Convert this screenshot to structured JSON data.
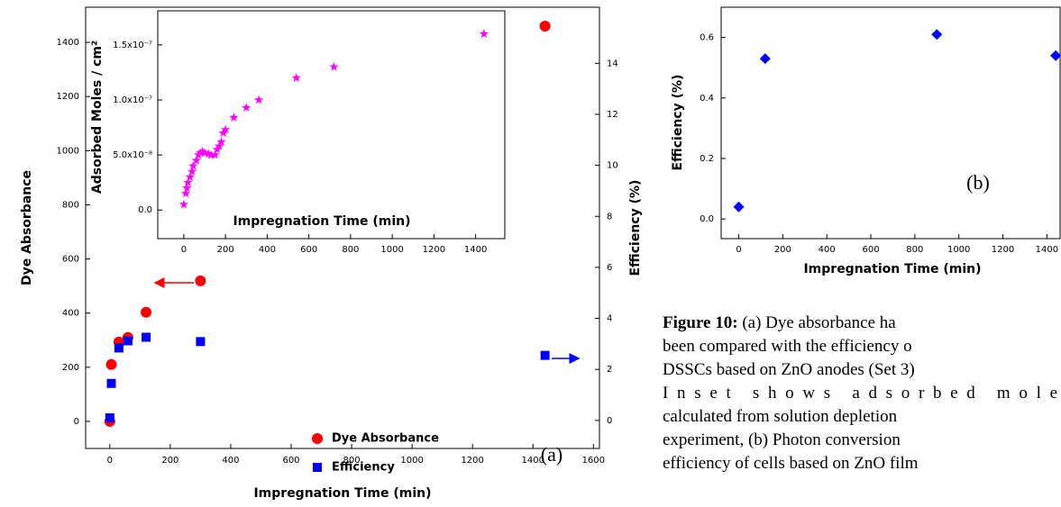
{
  "chart_data": [
    {
      "type": "scatter",
      "xlabel": "Impregnation Time (min)",
      "ylabel": "Dye Absorbance",
      "y2label": "Efficiency (%)",
      "annotation": "(a)",
      "x": [
        0,
        5,
        30,
        60,
        120,
        300,
        1440
      ],
      "series": [
        {
          "name": "Dye Absorbance",
          "color": "#ff0000",
          "marker": "circle",
          "values": [
            0,
            210,
            293,
            310,
            403,
            519,
            1460
          ]
        },
        {
          "name": "Efficiency",
          "color": "#0000ff",
          "marker": "square",
          "axis": "y2",
          "values": [
            0.1,
            1.45,
            2.84,
            3.12,
            3.26,
            3.09,
            2.55
          ]
        }
      ],
      "xlim": [
        -80,
        1620
      ],
      "xticks": [
        0,
        200,
        400,
        600,
        800,
        1000,
        1200,
        1400,
        1600
      ],
      "ylim": [
        -100,
        1530
      ],
      "yticks": [
        0,
        200,
        400,
        600,
        800,
        1000,
        1200,
        1400
      ],
      "y2lim": [
        -1.1,
        16.2
      ],
      "y2ticks": [
        0,
        2,
        4,
        6,
        8,
        10,
        12,
        14
      ],
      "legend": "lower right"
    },
    {
      "type": "scatter",
      "xlabel": "Impregnation Time (min)",
      "ylabel": "Adsorbed Moles / cm²",
      "x": [
        0,
        10,
        15,
        20,
        30,
        40,
        45,
        60,
        70,
        80,
        90,
        100,
        120,
        130,
        150,
        160,
        170,
        180,
        190,
        200,
        240,
        300,
        360,
        540,
        720,
        1440
      ],
      "series": [
        {
          "color": "#ff00ff",
          "marker": "star",
          "values": [
            5e-09,
            1.5e-08,
            2e-08,
            2.5e-08,
            3e-08,
            3.5e-08,
            4e-08,
            4.5e-08,
            5e-08,
            5.2e-08,
            5.3e-08,
            5.2e-08,
            5.1e-08,
            5e-08,
            5e-08,
            5.5e-08,
            5.8e-08,
            6.2e-08,
            7e-08,
            7.3e-08,
            8.4e-08,
            9.3e-08,
            1e-07,
            1.2e-07,
            1.3e-07,
            1.6e-07
          ]
        }
      ],
      "xlim": [
        -125,
        1540
      ],
      "xticks": [
        0,
        200,
        400,
        600,
        800,
        1000,
        1200,
        1400
      ],
      "ylim": [
        -2.6e-08,
        1.81e-07
      ],
      "yticks": [
        {
          "value": 0,
          "label": "0.0"
        },
        {
          "value": 5e-08,
          "label": "5.0x10⁻⁸"
        },
        {
          "value": 1e-07,
          "label": "1.0x10⁻⁷"
        },
        {
          "value": 1.5e-07,
          "label": "1.5x10⁻⁷"
        }
      ]
    },
    {
      "type": "scatter",
      "xlabel": "Impregnation Time (min)",
      "ylabel": "Efficiency (%)",
      "annotation": "(b)",
      "x": [
        0,
        120,
        900,
        1440
      ],
      "series": [
        {
          "color": "#0000ff",
          "marker": "diamond",
          "values": [
            0.04,
            0.53,
            0.61,
            0.54
          ]
        }
      ],
      "xlim": [
        -80,
        1460
      ],
      "xticks": [
        0,
        200,
        400,
        600,
        800,
        1000,
        1200,
        1400
      ],
      "ylim": [
        -0.065,
        0.7
      ],
      "yticks": [
        {
          "value": 0,
          "label": "0.0"
        },
        0.2,
        0.4,
        0.6
      ]
    }
  ],
  "caption": {
    "label": "Figure 10:",
    "lines": [
      "(a) Dye absorbance ha",
      "been compared with the efficiency o",
      "DSSCs based on ZnO anodes (Set 3)",
      "Inset shows adsorbed mole",
      "calculated from solution depletion",
      "experiment, (b) Photon conversion",
      "efficiency of cells based on ZnO film"
    ]
  }
}
